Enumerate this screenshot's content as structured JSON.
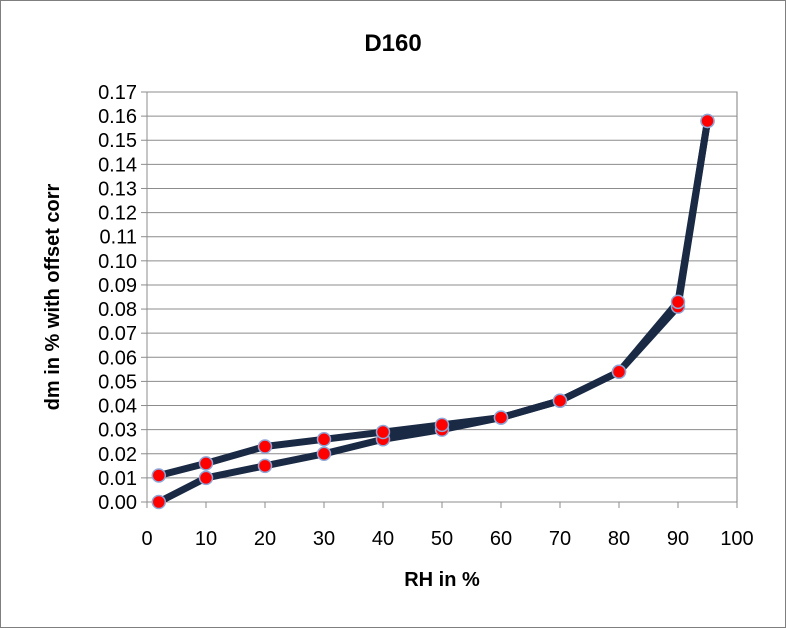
{
  "chart_data": {
    "type": "line",
    "title": "D160",
    "xlabel": "RH in %",
    "ylabel": "dm in % with offset corr",
    "xlim": [
      0,
      100
    ],
    "ylim": [
      0,
      0.17
    ],
    "xticks": [
      "0",
      "10",
      "20",
      "30",
      "40",
      "50",
      "60",
      "70",
      "80",
      "90",
      "100"
    ],
    "yticks": [
      "0.00",
      "0.01",
      "0.02",
      "0.03",
      "0.04",
      "0.05",
      "0.06",
      "0.07",
      "0.08",
      "0.09",
      "0.10",
      "0.11",
      "0.12",
      "0.13",
      "0.14",
      "0.15",
      "0.16",
      "0.17"
    ],
    "grid": "horizontal",
    "line_color": "#1a2a44",
    "marker_color": "#ff0000",
    "marker_edge_color": "#8ea6d8",
    "series": [
      {
        "x": [
          2,
          10,
          20,
          30,
          40,
          50,
          60,
          70,
          80,
          90,
          95
        ],
        "y": [
          0.0,
          0.01,
          0.015,
          0.02,
          0.026,
          0.03,
          0.035,
          0.042,
          0.054,
          0.081,
          0.158
        ]
      },
      {
        "x": [
          95,
          90,
          80,
          70,
          60,
          50,
          40,
          30,
          20,
          10,
          2
        ],
        "y": [
          0.158,
          0.083,
          0.054,
          0.042,
          0.035,
          0.032,
          0.029,
          0.026,
          0.023,
          0.016,
          0.011
        ]
      }
    ]
  }
}
